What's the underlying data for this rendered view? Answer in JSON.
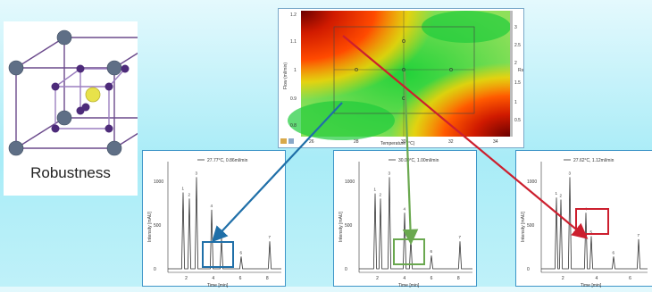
{
  "robustness_label": "Robustness",
  "contour": {
    "xlabel": "Temperature (°C)",
    "ylabel": "Flow (ml/min)",
    "y_ticks": [
      "1.2",
      "1.1",
      "1",
      "0.9",
      "0.8"
    ],
    "x_ticks": [
      "26",
      "28",
      "30",
      "32",
      "34"
    ],
    "right_ticks": [
      "3",
      "2.5",
      "2",
      "1.5",
      "1",
      "0.5"
    ],
    "right_label": "Rs"
  },
  "chromatograms": [
    {
      "id": "left",
      "legend": "27.77°C, 0.86ml/min",
      "ylabel": "Intensity [mAU]",
      "xlabel": "Time [min]",
      "y_ticks": [
        "1000",
        "500",
        "0"
      ],
      "x_ticks": [
        "2",
        "4",
        "6",
        "8"
      ],
      "peak_labels": [
        "1",
        "2",
        "3",
        "4",
        "5",
        "6",
        "7"
      ],
      "box_color": "#1f6fa8"
    },
    {
      "id": "center",
      "legend": "30.00°C, 1.00ml/min",
      "ylabel": "Intensity [mAU]",
      "xlabel": "Time [min]",
      "y_ticks": [
        "1000",
        "500",
        "0"
      ],
      "x_ticks": [
        "2",
        "4",
        "6",
        "8"
      ],
      "peak_labels": [
        "1",
        "2",
        "3",
        "4",
        "5",
        "6",
        "7"
      ],
      "box_color": "#6aa84f"
    },
    {
      "id": "right",
      "legend": "27.62°C, 1.12ml/min",
      "ylabel": "Intensity [mAU]",
      "xlabel": "Time [min]",
      "y_ticks": [
        "1000",
        "500",
        "0"
      ],
      "x_ticks": [
        "2",
        "4",
        "6"
      ],
      "peak_labels": [
        "1",
        "2",
        "3",
        "4",
        "5",
        "6",
        "7"
      ],
      "box_color": "#cc1f2e"
    }
  ],
  "arrow_colors": {
    "blue": "#1f6fa8",
    "green": "#6aa84f",
    "red": "#cc1f2e"
  }
}
